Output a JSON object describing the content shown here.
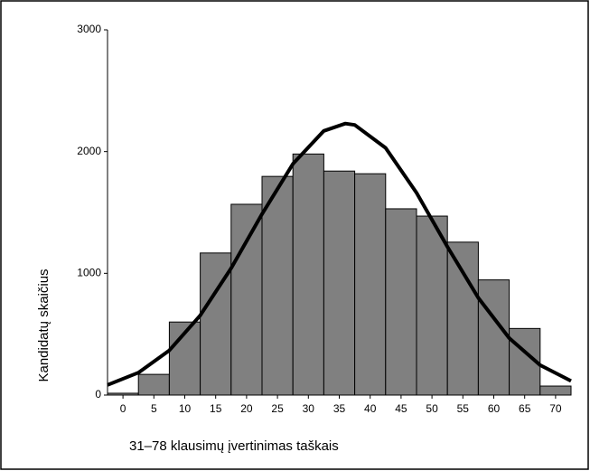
{
  "chart_data": {
    "type": "histogram",
    "xlabel": "31–78 klausimų įvertinimas taškais",
    "ylabel": "Kandidatų skaičius",
    "bins": [
      -2.5,
      2.5,
      7.5,
      12.5,
      17.5,
      22.5,
      27.5,
      32.5,
      37.5,
      42.5,
      47.5,
      52.5,
      57.5,
      62.5,
      67.5,
      72.5
    ],
    "values": [
      15,
      170,
      600,
      1167,
      1567,
      1796,
      1980,
      1840,
      1818,
      1530,
      1470,
      1256,
      946,
      547,
      74
    ],
    "color": "#808080",
    "curve": {
      "color": "#000000",
      "x": [
        -2.5,
        2.5,
        7.5,
        12.5,
        17.5,
        22.5,
        27.5,
        32.5,
        36,
        37.5,
        42.5,
        47.5,
        52.5,
        57.5,
        62.5,
        67.5,
        72.5
      ],
      "values": [
        83,
        184,
        367,
        654,
        1042,
        1487,
        1899,
        2170,
        2230,
        2219,
        2030,
        1662,
        1218,
        798,
        468,
        246,
        116
      ]
    },
    "xlim": [
      -2.5,
      72.5
    ],
    "xticks": [
      0,
      5,
      10,
      15,
      20,
      25,
      30,
      35,
      40,
      45,
      50,
      55,
      60,
      65,
      70
    ],
    "ylim": [
      0,
      3000
    ],
    "yticks": [
      0,
      1000,
      2000,
      3000
    ]
  }
}
